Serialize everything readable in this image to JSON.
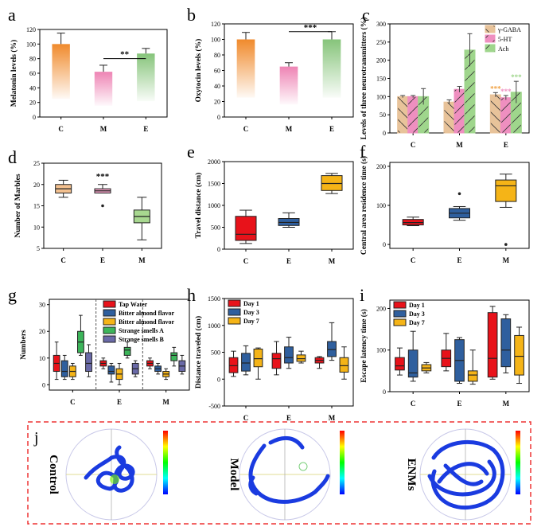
{
  "chart_data": [
    {
      "panel": "a",
      "type": "bar",
      "ylabel": "Melatonin levels (%)",
      "ylim": [
        0,
        120
      ],
      "yticks": [
        0,
        20,
        40,
        60,
        80,
        100,
        120
      ],
      "categories": [
        "C",
        "M",
        "E"
      ],
      "values": [
        100,
        62,
        87
      ],
      "errors": [
        15,
        9,
        7
      ],
      "colors": [
        "#f08a2c",
        "#ee84b4",
        "#86c47a"
      ],
      "significance": {
        "between": [
          "M",
          "E"
        ],
        "label": "**"
      }
    },
    {
      "panel": "b",
      "type": "bar",
      "ylabel": "Oxytocin levels (%)",
      "ylim": [
        0,
        120
      ],
      "yticks": [
        0,
        20,
        40,
        60,
        80,
        100,
        120
      ],
      "categories": [
        "C",
        "M",
        "E"
      ],
      "values": [
        100,
        65,
        100
      ],
      "errors": [
        9,
        5,
        10
      ],
      "colors": [
        "#f08a2c",
        "#ee84b4",
        "#86c47a"
      ],
      "significance": {
        "between": [
          "M",
          "E"
        ],
        "label": "***"
      }
    },
    {
      "panel": "c",
      "type": "bar",
      "ylabel": "Levels of three neurotransmitters (%)",
      "ylim": [
        0,
        300
      ],
      "yticks": [
        0,
        50,
        100,
        150,
        200,
        250,
        300
      ],
      "categories": [
        "C",
        "M",
        "E"
      ],
      "series": [
        {
          "name": "γ-GABA",
          "values": [
            100,
            85,
            105
          ],
          "errors": [
            3,
            6,
            6
          ],
          "color": "#e8c39a",
          "stars": [
            "",
            "",
            "***"
          ]
        },
        {
          "name": "5-HT",
          "values": [
            100,
            120,
            97
          ],
          "errors": [
            3,
            8,
            6
          ],
          "color": "#ef8fc0",
          "stars": [
            "",
            "",
            "***"
          ]
        },
        {
          "name": "Ach",
          "values": [
            100,
            228,
            112
          ],
          "errors": [
            22,
            45,
            30
          ],
          "color": "#9fd68c",
          "stars": [
            "",
            "",
            "***"
          ]
        }
      ]
    },
    {
      "panel": "d",
      "type": "box",
      "ylabel": "Number of Marbles",
      "ylim": [
        5,
        25
      ],
      "yticks": [
        5,
        10,
        15,
        20,
        25
      ],
      "categories": [
        "C",
        "E",
        "M"
      ],
      "boxes": [
        {
          "min": 17,
          "q1": 18,
          "median": 19,
          "q3": 20,
          "max": 21,
          "outliers": [],
          "color": "#f3c08f"
        },
        {
          "min": 18,
          "q1": 18,
          "median": 18.5,
          "q3": 19,
          "max": 20,
          "outliers": [
            15
          ],
          "color": "#f4a6c8"
        },
        {
          "min": 7,
          "q1": 11,
          "median": 12.5,
          "q3": 14,
          "max": 17,
          "outliers": [],
          "color": "#a8d890"
        }
      ],
      "significance": {
        "over": "E",
        "label": "***"
      }
    },
    {
      "panel": "e",
      "type": "box",
      "ylabel": "Travel distance (cm)",
      "ylim": [
        0,
        2000
      ],
      "yticks": [
        0,
        500,
        1000,
        1500,
        2000
      ],
      "categories": [
        "C",
        "E",
        "M"
      ],
      "boxes": [
        {
          "min": 130,
          "q1": 200,
          "median": 340,
          "q3": 750,
          "max": 890,
          "outliers": [],
          "color": "#e8121a"
        },
        {
          "min": 500,
          "q1": 540,
          "median": 610,
          "q3": 700,
          "max": 830,
          "outliers": [],
          "color": "#2f5f9e"
        },
        {
          "min": 1270,
          "q1": 1340,
          "median": 1500,
          "q3": 1680,
          "max": 1730,
          "outliers": [],
          "color": "#f5b417"
        }
      ]
    },
    {
      "panel": "f",
      "type": "box",
      "ylabel": "Central area residence time (s)",
      "ylim": [
        -10,
        210
      ],
      "yticks": [
        0,
        100,
        200
      ],
      "categories": [
        "C",
        "E",
        "M"
      ],
      "boxes": [
        {
          "min": 48,
          "q1": 50,
          "median": 56,
          "q3": 64,
          "max": 70,
          "outliers": [],
          "color": "#e8121a"
        },
        {
          "min": 62,
          "q1": 68,
          "median": 80,
          "q3": 92,
          "max": 97,
          "outliers": [
            130
          ],
          "color": "#2f5f9e"
        },
        {
          "min": 95,
          "q1": 110,
          "median": 150,
          "q3": 165,
          "max": 180,
          "outliers": [
            0
          ],
          "color": "#f5b417"
        }
      ]
    },
    {
      "panel": "g",
      "type": "box",
      "ylabel": "Numbers",
      "ylim": [
        -2,
        32
      ],
      "yticks": [
        0,
        10,
        20,
        30
      ],
      "categories": [
        "C",
        "E",
        "M"
      ],
      "legend": [
        {
          "name": "Tap Water",
          "color": "#e8121a"
        },
        {
          "name": "Bitter almond flavor",
          "color": "#2f5f9e"
        },
        {
          "name": "Bitter almond flavor",
          "color": "#f5b417"
        },
        {
          "name": "Strange smells A",
          "color": "#3cb55a"
        },
        {
          "name": "Strange smells B",
          "color": "#6a6aa8"
        }
      ],
      "groups": [
        [
          {
            "min": 2,
            "q1": 5,
            "median": 8,
            "q3": 11,
            "max": 16,
            "outliers": []
          },
          {
            "min": 2,
            "q1": 3,
            "median": 5,
            "q3": 9,
            "max": 11,
            "outliers": []
          },
          {
            "min": 2,
            "q1": 3,
            "median": 5,
            "q3": 7,
            "max": 8,
            "outliers": []
          },
          {
            "min": 11,
            "q1": 12,
            "median": 16,
            "q3": 20,
            "max": 26,
            "outliers": []
          },
          {
            "min": 3,
            "q1": 5,
            "median": 8,
            "q3": 12,
            "max": 15,
            "outliers": []
          }
        ],
        [
          {
            "min": 6,
            "q1": 7,
            "median": 8,
            "q3": 9,
            "max": 10,
            "outliers": []
          },
          {
            "min": 1,
            "q1": 4,
            "median": 5,
            "q3": 7,
            "max": 8,
            "outliers": []
          },
          {
            "min": 0,
            "q1": 2,
            "median": 4,
            "q3": 6,
            "max": 8,
            "outliers": []
          },
          {
            "min": 10,
            "q1": 11,
            "median": 13,
            "q3": 14,
            "max": 16,
            "outliers": []
          },
          {
            "min": 3,
            "q1": 4,
            "median": 6,
            "q3": 8,
            "max": 9,
            "outliers": []
          }
        ],
        [
          {
            "min": 6,
            "q1": 7,
            "median": 8,
            "q3": 9,
            "max": 10,
            "outliers": []
          },
          {
            "min": 4,
            "q1": 5,
            "median": 6,
            "q3": 7,
            "max": 8,
            "outliers": []
          },
          {
            "min": 2,
            "q1": 3,
            "median": 4,
            "q3": 5,
            "max": 6,
            "outliers": []
          },
          {
            "min": 7,
            "q1": 9,
            "median": 11,
            "q3": 12,
            "max": 14,
            "outliers": []
          },
          {
            "min": 4,
            "q1": 5,
            "median": 7,
            "q3": 9,
            "max": 11,
            "outliers": []
          }
        ]
      ]
    },
    {
      "panel": "h",
      "type": "box",
      "ylabel": "Distance traveled (cm)",
      "ylim": [
        -500,
        1500
      ],
      "yticks": [
        -500,
        0,
        500,
        1000,
        1500
      ],
      "categories": [
        "C",
        "E",
        "M"
      ],
      "legend": [
        {
          "name": "Day 1",
          "color": "#e8121a"
        },
        {
          "name": "Day 3",
          "color": "#2f5f9e"
        },
        {
          "name": "Day 7",
          "color": "#f5b417"
        }
      ],
      "groups": [
        [
          {
            "min": 50,
            "q1": 120,
            "median": 250,
            "q3": 400,
            "max": 520,
            "outliers": []
          },
          {
            "min": 80,
            "q1": 150,
            "median": 300,
            "q3": 480,
            "max": 620,
            "outliers": []
          },
          {
            "min": 0,
            "q1": 230,
            "median": 380,
            "q3": 560,
            "max": 580,
            "outliers": []
          }
        ],
        [
          {
            "min": 80,
            "q1": 200,
            "median": 380,
            "q3": 480,
            "max": 700,
            "outliers": []
          },
          {
            "min": 200,
            "q1": 300,
            "median": 400,
            "q3": 600,
            "max": 780,
            "outliers": []
          },
          {
            "min": 300,
            "q1": 330,
            "median": 380,
            "q3": 450,
            "max": 520,
            "outliers": []
          }
        ],
        [
          {
            "min": 200,
            "q1": 300,
            "median": 350,
            "q3": 400,
            "max": 420,
            "outliers": []
          },
          {
            "min": 350,
            "q1": 420,
            "median": 550,
            "q3": 700,
            "max": 1050,
            "outliers": []
          },
          {
            "min": 0,
            "q1": 130,
            "median": 250,
            "q3": 400,
            "max": 600,
            "outliers": []
          }
        ]
      ]
    },
    {
      "panel": "i",
      "type": "box",
      "ylabel": "Escape latency time (s)",
      "ylim": [
        0,
        220
      ],
      "yticks": [
        0,
        100,
        200
      ],
      "categories": [
        "C",
        "E",
        "M"
      ],
      "legend": [
        {
          "name": "Day 1",
          "color": "#e8121a"
        },
        {
          "name": "Day 3",
          "color": "#2f5f9e"
        },
        {
          "name": "Day 7",
          "color": "#f5b417"
        }
      ],
      "groups": [
        [
          {
            "min": 40,
            "q1": 52,
            "median": 62,
            "q3": 82,
            "max": 105,
            "outliers": []
          },
          {
            "min": 25,
            "q1": 35,
            "median": 45,
            "q3": 100,
            "max": 145,
            "outliers": []
          },
          {
            "min": 45,
            "q1": 50,
            "median": 57,
            "q3": 65,
            "max": 70,
            "outliers": []
          }
        ],
        [
          {
            "min": 50,
            "q1": 60,
            "median": 80,
            "q3": 100,
            "max": 140,
            "outliers": []
          },
          {
            "min": 20,
            "q1": 25,
            "median": 75,
            "q3": 125,
            "max": 130,
            "outliers": []
          },
          {
            "min": 18,
            "q1": 25,
            "median": 40,
            "q3": 50,
            "max": 100,
            "outliers": []
          }
        ],
        [
          {
            "min": 30,
            "q1": 35,
            "median": 80,
            "q3": 190,
            "max": 205,
            "outliers": []
          },
          {
            "min": 45,
            "q1": 60,
            "median": 100,
            "q3": 175,
            "max": 185,
            "outliers": []
          },
          {
            "min": 20,
            "q1": 40,
            "median": 85,
            "q3": 135,
            "max": 155,
            "outliers": []
          }
        ]
      ]
    }
  ],
  "panels": [
    "a",
    "b",
    "c",
    "d",
    "e",
    "f",
    "g",
    "h",
    "i",
    "j"
  ],
  "tracks": {
    "label_j": "j",
    "items": [
      {
        "label": "Control"
      },
      {
        "label": "Model"
      },
      {
        "label": "ENMs"
      }
    ],
    "colormap": [
      "#ff0000",
      "#ffff00",
      "#00ff00",
      "#00ffff",
      "#0000ff"
    ],
    "track_color": "#1a3be0"
  }
}
